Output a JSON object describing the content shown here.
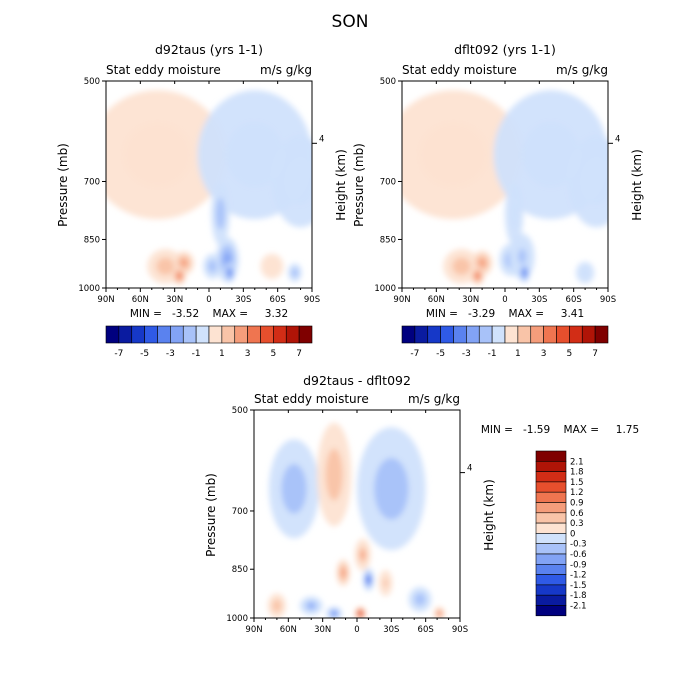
{
  "figure_title": "SON",
  "panels": [
    {
      "title": "d92taus (yrs 1-1)",
      "subtitle_left": "Stat eddy moisture",
      "subtitle_right": "m/s g/kg",
      "ylabel": "Pressure (mb)",
      "ylabel_right": "Height (km)",
      "min_max_text": "MIN =   -3.52    MAX =     3.32"
    },
    {
      "title": "dflt092 (yrs 1-1)",
      "subtitle_left": "Stat eddy moisture",
      "subtitle_right": "m/s g/kg",
      "ylabel": "Pressure (mb)",
      "ylabel_right": "Height (km)",
      "min_max_text": "MIN =   -3.29    MAX =     3.41"
    },
    {
      "title": "d92taus - dflt092",
      "subtitle_left": "Stat eddy moisture",
      "subtitle_right": "m/s g/kg",
      "ylabel": "Pressure (mb)",
      "ylabel_right": "Height (km)",
      "min_max_text": "MIN =   -1.59    MAX =     1.75"
    }
  ],
  "colors": {
    "blues": [
      "#00007f",
      "#0a1ba0",
      "#1638c8",
      "#2f5ae6",
      "#5a82ef",
      "#82a3f5",
      "#a8c2f9",
      "#d0e2fc"
    ],
    "reds": [
      "#fde3d2",
      "#f9c4a8",
      "#f59d7b",
      "#ef7550",
      "#e74f2d",
      "#d22d16",
      "#b01407",
      "#7f0000"
    ]
  },
  "colorbar_top": {
    "tick_labels": [
      "-7",
      "-5",
      "-3",
      "-1",
      "1",
      "3",
      "5",
      "7"
    ]
  },
  "colorbar_diff": {
    "tick_labels": [
      "2.1",
      "1.8",
      "1.5",
      "1.2",
      "0.9",
      "0.6",
      "0.3",
      "0",
      "-0.3",
      "-0.6",
      "-0.9",
      "-1.2",
      "-1.5",
      "-1.8",
      "-2.1"
    ]
  },
  "chart_data": [
    {
      "type": "heatmap",
      "title": "d92taus (yrs 1-1)",
      "variable": "Stat eddy moisture",
      "units": "m/s g/kg",
      "xlabel": "",
      "ylabel": "Pressure (mb)",
      "y2label": "Height (km)",
      "x_ticks": [
        "90N",
        "60N",
        "30N",
        "0",
        "30S",
        "60S",
        "90S"
      ],
      "x_range": [
        90,
        -90
      ],
      "y_ticks": [
        "500",
        "700",
        "850",
        "1000"
      ],
      "y_range_mb": [
        1000,
        500
      ],
      "y2_ticks": [
        "4"
      ],
      "contour_levels": [
        -7,
        -6,
        -5,
        -4,
        -3,
        -2,
        -1,
        0,
        1,
        2,
        3,
        4,
        5,
        6,
        7
      ],
      "min": -3.52,
      "max": 3.32
    },
    {
      "type": "heatmap",
      "title": "dflt092 (yrs 1-1)",
      "variable": "Stat eddy moisture",
      "units": "m/s g/kg",
      "xlabel": "",
      "ylabel": "Pressure (mb)",
      "y2label": "Height (km)",
      "x_ticks": [
        "90N",
        "60N",
        "30N",
        "0",
        "30S",
        "60S",
        "90S"
      ],
      "x_range": [
        90,
        -90
      ],
      "y_ticks": [
        "500",
        "700",
        "850",
        "1000"
      ],
      "y_range_mb": [
        1000,
        500
      ],
      "y2_ticks": [
        "4"
      ],
      "contour_levels": [
        -7,
        -6,
        -5,
        -4,
        -3,
        -2,
        -1,
        0,
        1,
        2,
        3,
        4,
        5,
        6,
        7
      ],
      "min": -3.29,
      "max": 3.41
    },
    {
      "type": "heatmap",
      "title": "d92taus - dflt092",
      "variable": "Stat eddy moisture",
      "units": "m/s g/kg",
      "xlabel": "",
      "ylabel": "Pressure (mb)",
      "y2label": "Height (km)",
      "x_ticks": [
        "90N",
        "60N",
        "30N",
        "0",
        "30S",
        "60S",
        "90S"
      ],
      "x_range": [
        90,
        -90
      ],
      "y_ticks": [
        "500",
        "700",
        "850",
        "1000"
      ],
      "y_range_mb": [
        1000,
        500
      ],
      "y2_ticks": [
        "4"
      ],
      "contour_levels": [
        -2.1,
        -1.8,
        -1.5,
        -1.2,
        -0.9,
        -0.6,
        -0.3,
        0,
        0.3,
        0.6,
        0.9,
        1.2,
        1.5,
        1.8,
        2.1
      ],
      "min": -1.59,
      "max": 1.75
    }
  ]
}
